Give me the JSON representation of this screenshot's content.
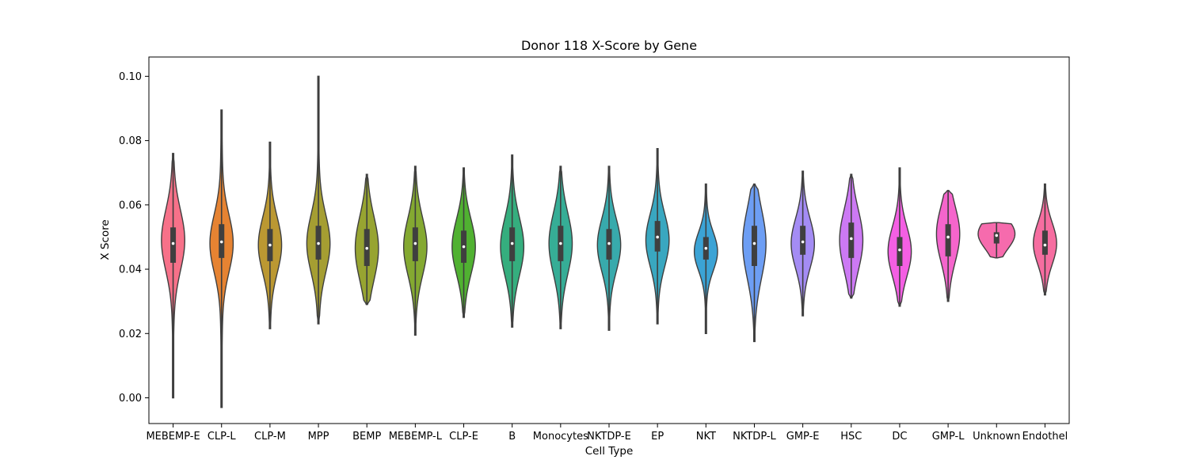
{
  "chart_data": {
    "type": "violin",
    "title": "Donor 118 X-Score by Gene",
    "xlabel": "Cell Type",
    "ylabel": "X Score",
    "ylim": [
      -0.008,
      0.106
    ],
    "yticks": [
      "0.00",
      "0.02",
      "0.04",
      "0.06",
      "0.08",
      "0.10"
    ],
    "grid": false,
    "categories": [
      "MEBEMP-E",
      "CLP-L",
      "CLP-M",
      "MPP",
      "BEMP",
      "MEBEMP-L",
      "CLP-E",
      "B",
      "Monocytes",
      "NKTDP-E",
      "EP",
      "NKT",
      "NKTDP-L",
      "GMP-E",
      "HSC",
      "DC",
      "GMP-L",
      "Unknown",
      "Endothel"
    ],
    "colors": [
      "#f77189",
      "#e68332",
      "#bb9832",
      "#a59e32",
      "#97a431",
      "#84a931",
      "#50b131",
      "#35ae7e",
      "#36ad96",
      "#38aaac",
      "#39a7c0",
      "#3ba3d5",
      "#6d9ef4",
      "#a48cf4",
      "#cc79f4",
      "#f45fe3",
      "#f565cc",
      "#f66bad",
      "#f66da0"
    ],
    "series": [
      {
        "min": 0.0,
        "q1": 0.042,
        "median": 0.048,
        "q3": 0.053,
        "max": 0.076,
        "peak": 0.049
      },
      {
        "min": -0.003,
        "q1": 0.0435,
        "median": 0.0485,
        "q3": 0.054,
        "max": 0.0895,
        "peak": 0.048
      },
      {
        "min": 0.0215,
        "q1": 0.0425,
        "median": 0.0475,
        "q3": 0.0525,
        "max": 0.0795,
        "peak": 0.0475
      },
      {
        "min": 0.023,
        "q1": 0.043,
        "median": 0.048,
        "q3": 0.0535,
        "max": 0.1,
        "peak": 0.048
      },
      {
        "min": 0.029,
        "q1": 0.041,
        "median": 0.0465,
        "q3": 0.0525,
        "max": 0.0695,
        "peak": 0.0465
      },
      {
        "min": 0.0195,
        "q1": 0.0425,
        "median": 0.048,
        "q3": 0.053,
        "max": 0.072,
        "peak": 0.047
      },
      {
        "min": 0.025,
        "q1": 0.042,
        "median": 0.047,
        "q3": 0.052,
        "max": 0.0715,
        "peak": 0.047
      },
      {
        "min": 0.022,
        "q1": 0.0425,
        "median": 0.048,
        "q3": 0.053,
        "max": 0.0755,
        "peak": 0.047
      },
      {
        "min": 0.0215,
        "q1": 0.0425,
        "median": 0.048,
        "q3": 0.0535,
        "max": 0.072,
        "peak": 0.048
      },
      {
        "min": 0.021,
        "q1": 0.043,
        "median": 0.048,
        "q3": 0.0525,
        "max": 0.072,
        "peak": 0.0475
      },
      {
        "min": 0.023,
        "q1": 0.0455,
        "median": 0.05,
        "q3": 0.055,
        "max": 0.0775,
        "peak": 0.049
      },
      {
        "min": 0.02,
        "q1": 0.043,
        "median": 0.0465,
        "q3": 0.05,
        "max": 0.0665,
        "peak": 0.0455
      },
      {
        "min": 0.0175,
        "q1": 0.041,
        "median": 0.048,
        "q3": 0.0535,
        "max": 0.0665,
        "peak": 0.048
      },
      {
        "min": 0.0255,
        "q1": 0.0445,
        "median": 0.0485,
        "q3": 0.0535,
        "max": 0.0705,
        "peak": 0.048
      },
      {
        "min": 0.031,
        "q1": 0.0435,
        "median": 0.0495,
        "q3": 0.0545,
        "max": 0.0695,
        "peak": 0.049
      },
      {
        "min": 0.0285,
        "q1": 0.041,
        "median": 0.046,
        "q3": 0.05,
        "max": 0.0715,
        "peak": 0.0455
      },
      {
        "min": 0.03,
        "q1": 0.044,
        "median": 0.05,
        "q3": 0.054,
        "max": 0.0645,
        "peak": 0.051
      },
      {
        "min": 0.0435,
        "q1": 0.048,
        "median": 0.0505,
        "q3": 0.0515,
        "max": 0.0545,
        "peak": 0.051
      },
      {
        "min": 0.032,
        "q1": 0.0445,
        "median": 0.0475,
        "q3": 0.052,
        "max": 0.0665,
        "peak": 0.048
      }
    ]
  }
}
